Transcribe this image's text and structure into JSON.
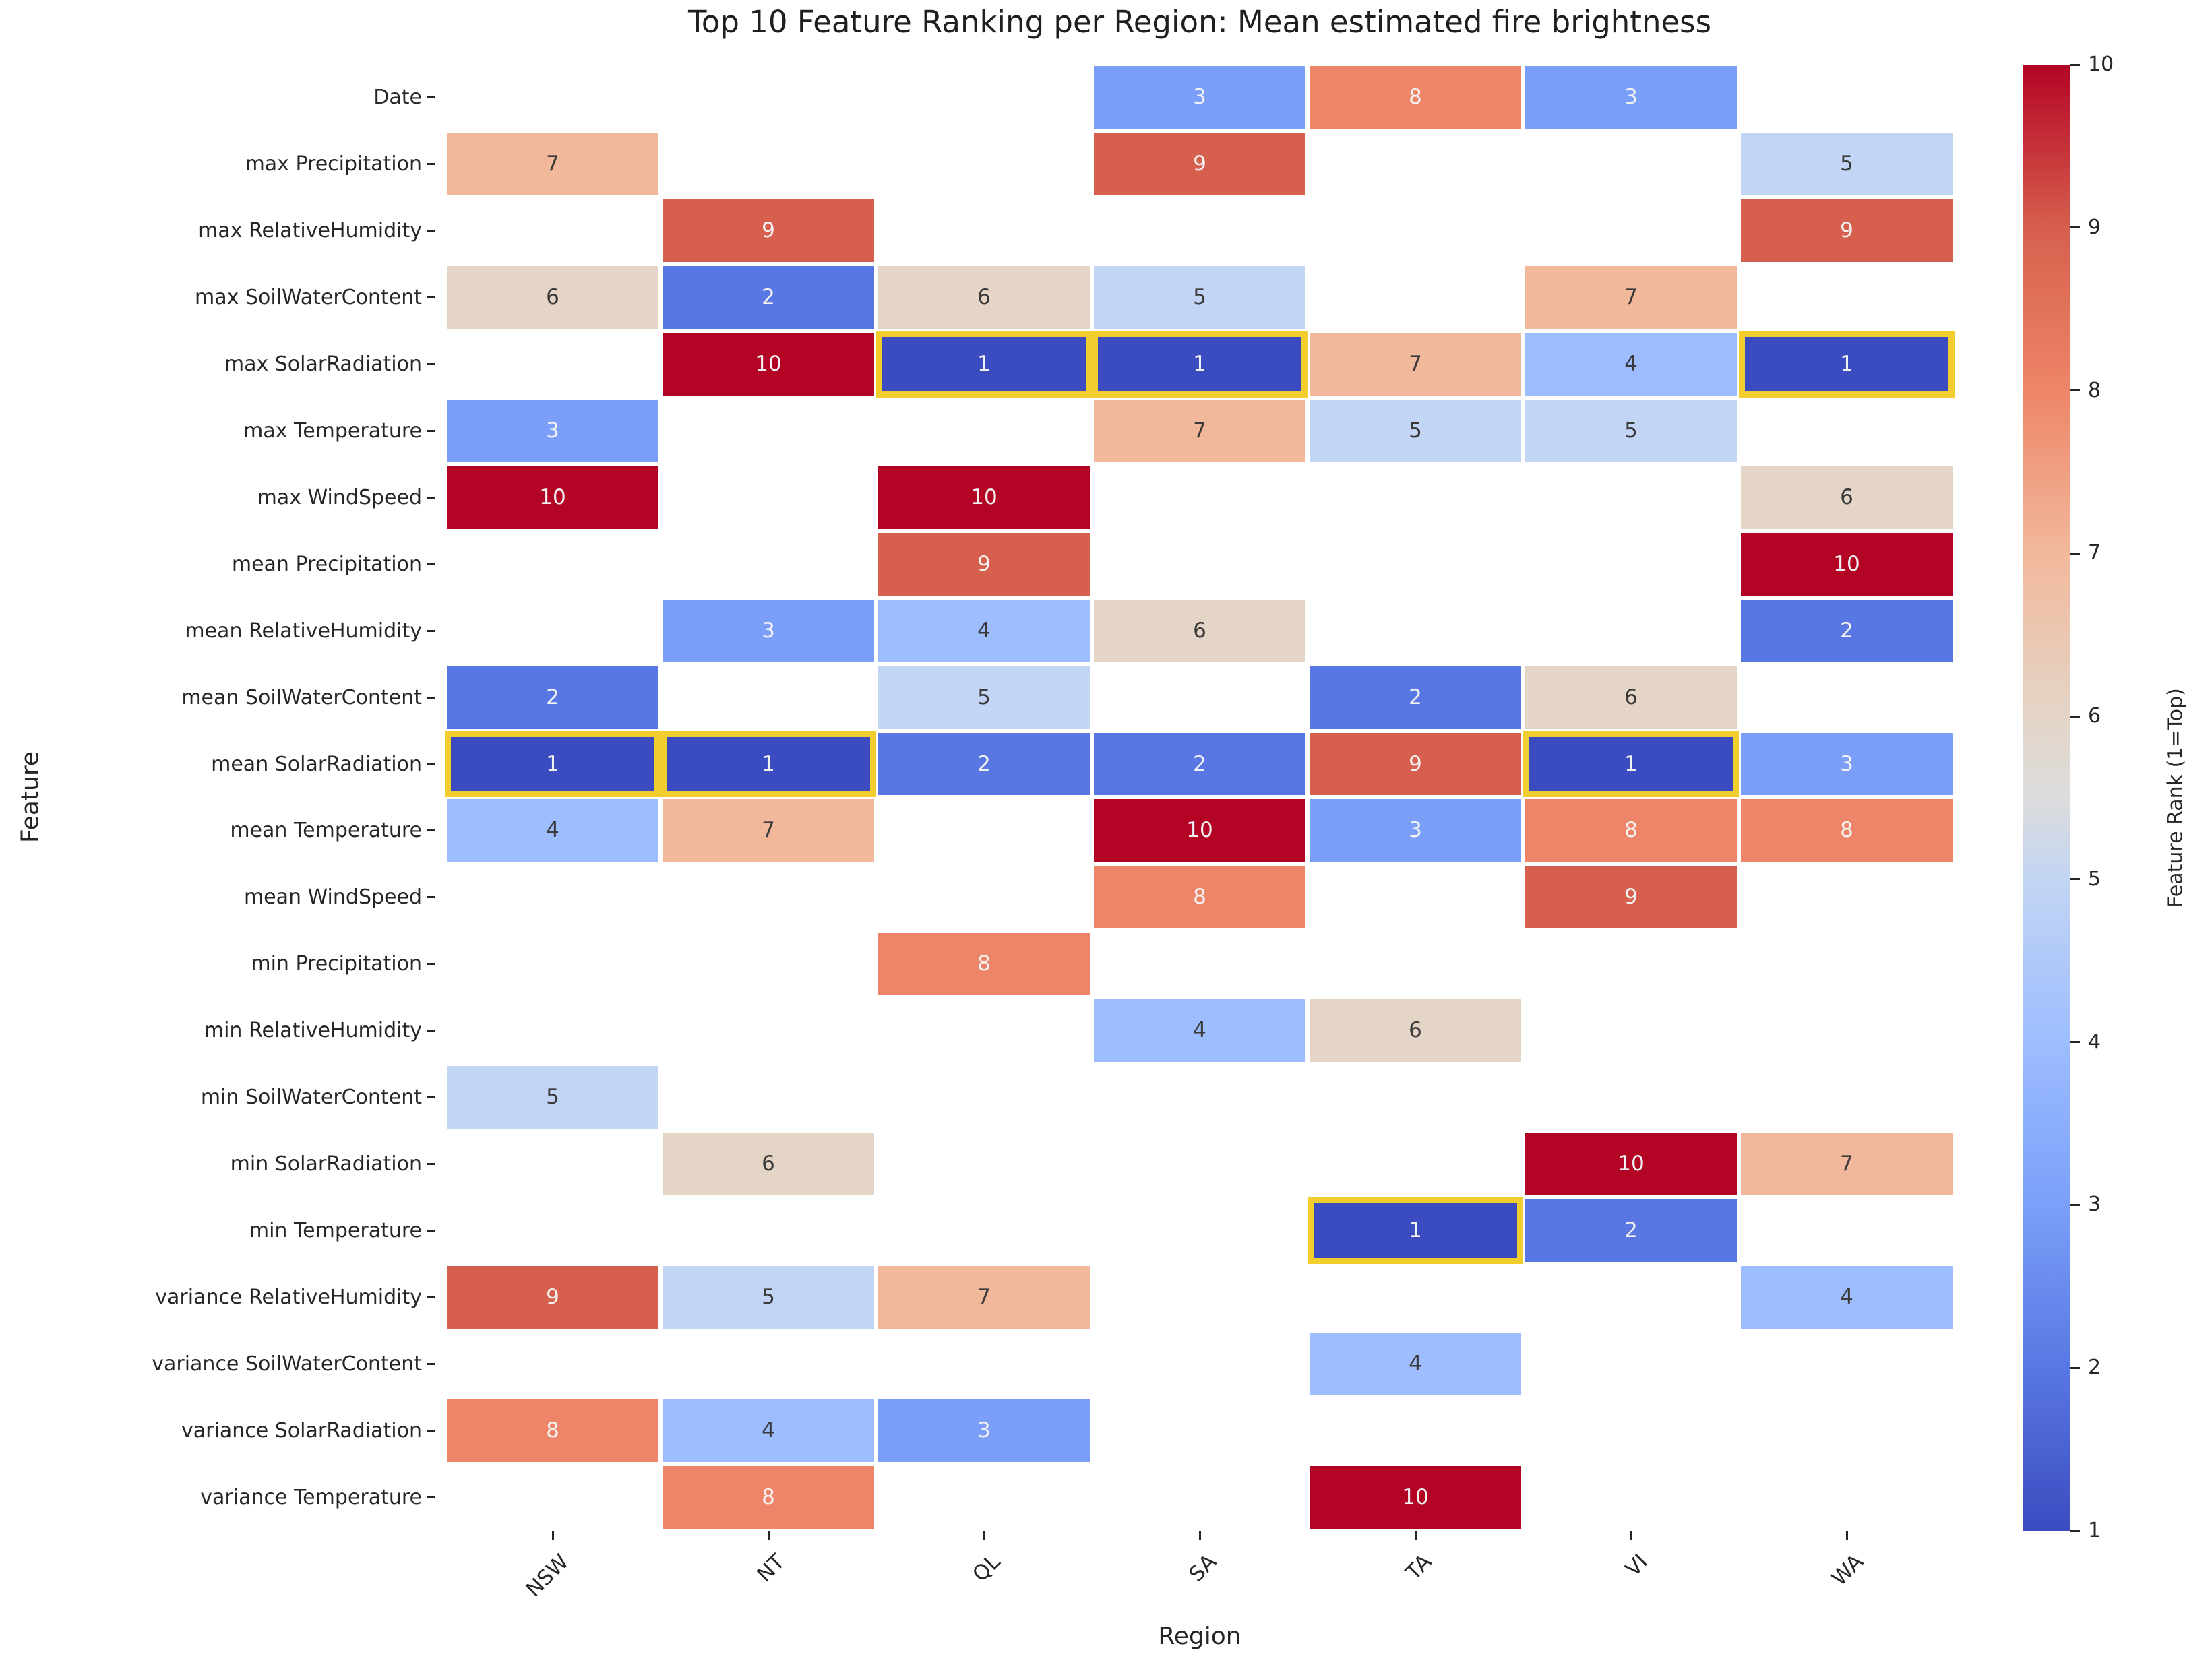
{
  "chart_data": {
    "type": "heatmap",
    "title": "Top 10 Feature Ranking per Region: Mean estimated fire brightness",
    "xlabel": "Region",
    "ylabel": "Feature",
    "columns": [
      "NSW",
      "NT",
      "QL",
      "SA",
      "TA",
      "VI",
      "WA"
    ],
    "rows": [
      "Date",
      "max Precipitation",
      "max RelativeHumidity",
      "max SoilWaterContent",
      "max SolarRadiation",
      "max Temperature",
      "max WindSpeed",
      "mean Precipitation",
      "mean RelativeHumidity",
      "mean SoilWaterContent",
      "mean SolarRadiation",
      "mean Temperature",
      "mean WindSpeed",
      "min Precipitation",
      "min RelativeHumidity",
      "min SoilWaterContent",
      "min SolarRadiation",
      "min Temperature",
      "variance RelativeHumidity",
      "variance SoilWaterContent",
      "variance SolarRadiation",
      "variance Temperature"
    ],
    "values": [
      [
        null,
        null,
        null,
        3,
        8,
        3,
        null
      ],
      [
        7,
        null,
        null,
        9,
        null,
        null,
        5
      ],
      [
        null,
        9,
        null,
        null,
        null,
        null,
        9
      ],
      [
        6,
        2,
        6,
        5,
        null,
        7,
        null
      ],
      [
        null,
        10,
        1,
        1,
        7,
        4,
        1
      ],
      [
        3,
        null,
        null,
        7,
        5,
        5,
        null
      ],
      [
        10,
        null,
        10,
        null,
        null,
        null,
        6
      ],
      [
        null,
        null,
        9,
        null,
        null,
        null,
        10
      ],
      [
        null,
        3,
        4,
        6,
        null,
        null,
        2
      ],
      [
        2,
        null,
        5,
        null,
        2,
        6,
        null
      ],
      [
        1,
        1,
        2,
        2,
        9,
        1,
        3
      ],
      [
        4,
        7,
        null,
        10,
        3,
        8,
        8
      ],
      [
        null,
        null,
        null,
        8,
        null,
        9,
        null
      ],
      [
        null,
        null,
        8,
        null,
        null,
        null,
        null
      ],
      [
        null,
        null,
        null,
        4,
        6,
        null,
        null
      ],
      [
        5,
        null,
        null,
        null,
        null,
        null,
        null
      ],
      [
        null,
        6,
        null,
        null,
        null,
        10,
        7
      ],
      [
        null,
        null,
        null,
        null,
        1,
        2,
        null
      ],
      [
        9,
        5,
        7,
        null,
        null,
        null,
        4
      ],
      [
        null,
        null,
        null,
        null,
        4,
        null,
        null
      ],
      [
        8,
        4,
        3,
        null,
        null,
        null,
        null
      ],
      [
        null,
        8,
        null,
        null,
        10,
        null,
        null
      ]
    ],
    "rank1_highlighted_with_border": true,
    "colormap": "coolwarm",
    "colorbar": {
      "label": "Feature Rank (1=Top)",
      "min": 1,
      "max": 10,
      "ticks": [
        1,
        2,
        3,
        4,
        5,
        6,
        7,
        8,
        9,
        10
      ]
    },
    "colors": {
      "rank_hex": {
        "1": "#3b4cc0",
        "2": "#5977e3",
        "3": "#7b9ff9",
        "4": "#9dbdff",
        "5": "#c3d5f4",
        "6": "#e4d5c7",
        "7": "#f2b89b",
        "8": "#ee8568",
        "9": "#d65f4d",
        "10": "#b40426"
      },
      "text_white_ranks": [
        1,
        2,
        3,
        8,
        9,
        10
      ],
      "light_text": "#f2f2f2",
      "dark_text": "#3a3a3a",
      "highlight_border": "#f1ce2e",
      "gradient_stops": [
        "#3b4cc0 0%",
        "#5977e3 11.1%",
        "#7b9ff9 22.2%",
        "#9dbdff 33.3%",
        "#c3d5f4 44.4%",
        "#dcdcdc 50%",
        "#e4d5c7 55.6%",
        "#f2b89b 66.7%",
        "#ee8568 77.8%",
        "#d65f4d 88.9%",
        "#b40426 100%"
      ]
    }
  }
}
